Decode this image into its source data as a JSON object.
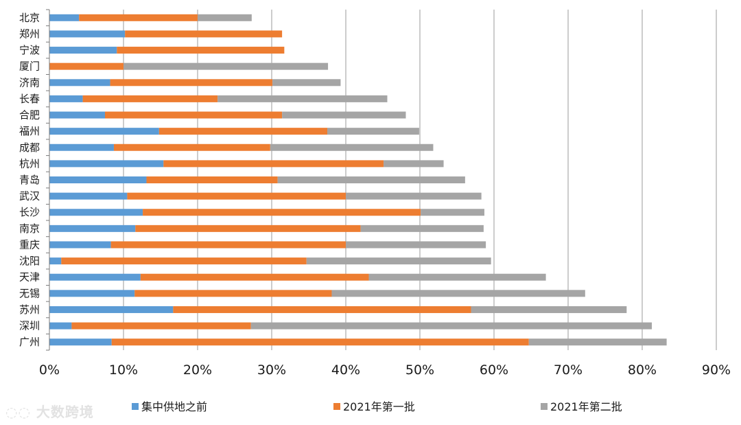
{
  "chart_data": {
    "type": "bar",
    "orientation": "horizontal",
    "stacked": true,
    "title": "",
    "xlabel": "",
    "ylabel": "",
    "xlim": [
      0,
      90
    ],
    "x_ticks": [
      "0%",
      "10%",
      "20%",
      "30%",
      "40%",
      "50%",
      "60%",
      "70%",
      "80%",
      "90%"
    ],
    "grid": "vertical",
    "legend_position": "bottom",
    "categories": [
      "北京",
      "郑州",
      "宁波",
      "厦门",
      "济南",
      "长春",
      "合肥",
      "福州",
      "成都",
      "杭州",
      "青岛",
      "武汉",
      "长沙",
      "南京",
      "重庆",
      "沈阳",
      "天津",
      "无锡",
      "苏州",
      "深圳",
      "广州"
    ],
    "series": [
      {
        "name": "集中供地之前",
        "color": "#5b9bd5",
        "values": [
          4.0,
          10.2,
          9.1,
          0.0,
          8.2,
          4.5,
          7.5,
          14.8,
          8.7,
          15.4,
          13.1,
          10.5,
          12.6,
          11.6,
          8.3,
          1.6,
          12.3,
          11.5,
          16.7,
          3.0,
          8.4
        ]
      },
      {
        "name": "2021年第一批",
        "color": "#ed7d31",
        "values": [
          16.0,
          21.2,
          22.6,
          10.0,
          21.9,
          18.2,
          23.9,
          22.7,
          21.1,
          29.7,
          17.7,
          29.5,
          37.5,
          30.4,
          31.7,
          33.1,
          30.8,
          26.6,
          40.2,
          24.2,
          56.3
        ]
      },
      {
        "name": "2021年第二批",
        "color": "#a5a5a5",
        "values": [
          7.3,
          0.0,
          0.0,
          27.6,
          9.2,
          22.9,
          16.7,
          12.4,
          22.0,
          8.1,
          25.3,
          18.3,
          8.6,
          16.6,
          18.9,
          24.9,
          23.9,
          34.2,
          21.0,
          54.1,
          18.6
        ]
      }
    ]
  },
  "legend": {
    "items": [
      {
        "label": "集中供地之前",
        "color": "#5b9bd5"
      },
      {
        "label": "2021年第一批",
        "color": "#ed7d31"
      },
      {
        "label": "2021年第二批",
        "color": "#a5a5a5"
      }
    ]
  },
  "watermark": {
    "text": "大数跨境"
  }
}
